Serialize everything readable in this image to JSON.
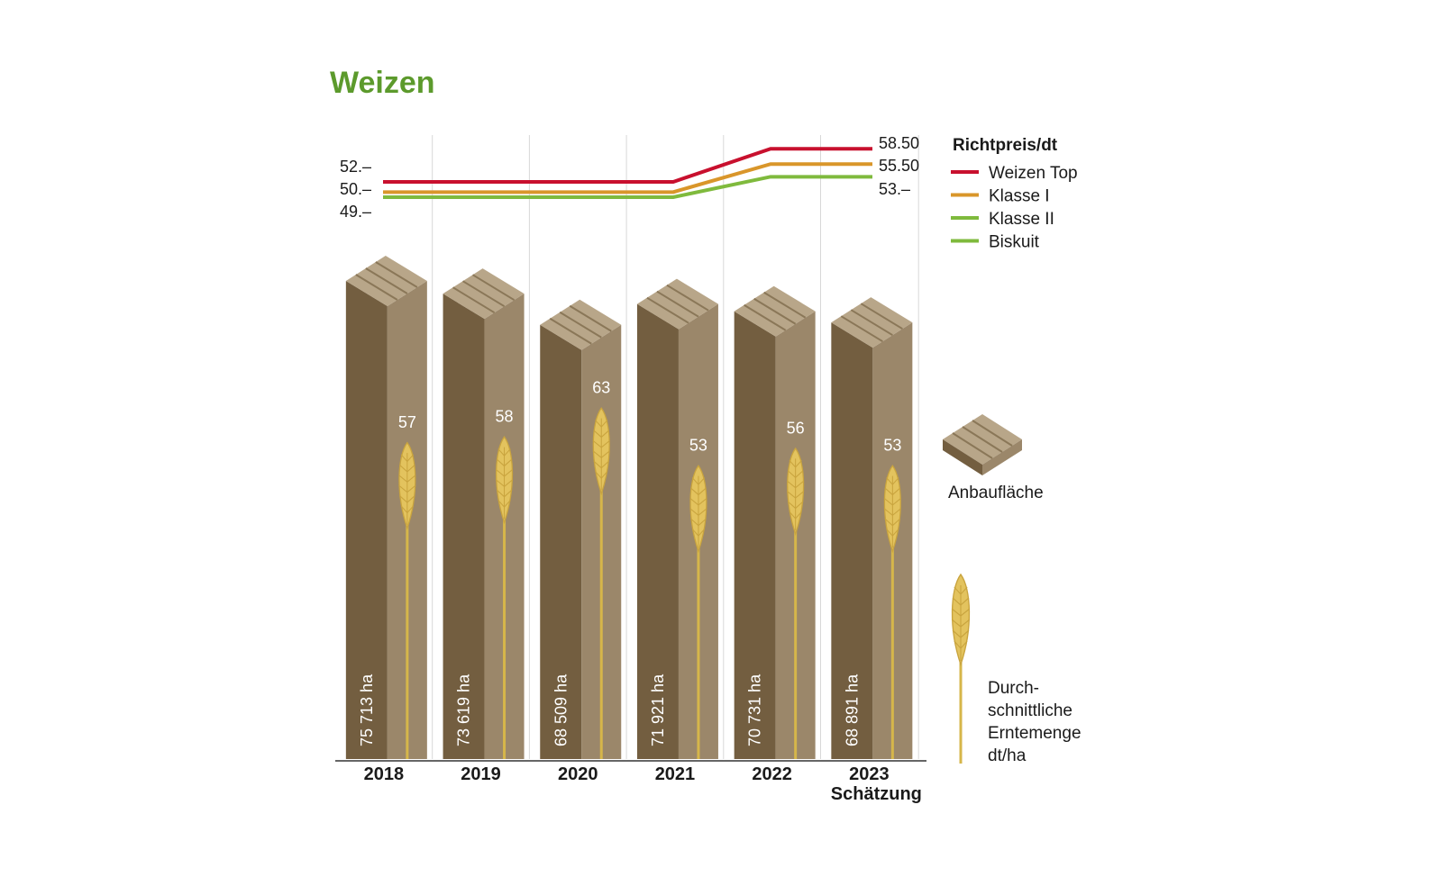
{
  "chart_data": {
    "type": "bar",
    "title": "Weizen",
    "categories": [
      "2018",
      "2019",
      "2020",
      "2021",
      "2022",
      "2023"
    ],
    "category_note": {
      "2023": "Schätzung"
    },
    "anbauflaeche": {
      "unit": "ha",
      "values": [
        75713,
        73619,
        68509,
        71921,
        70731,
        68891
      ],
      "labels": [
        "75 713 ha",
        "73 619 ha",
        "68 509 ha",
        "71 921 ha",
        "70 731 ha",
        "68 891 ha"
      ]
    },
    "ernte": {
      "unit": "dt/ha",
      "values": [
        57,
        58,
        63,
        53,
        56,
        53
      ],
      "labels": [
        "57",
        "58",
        "63",
        "53",
        "56",
        "53"
      ]
    },
    "price": {
      "title": "Richtpreis/dt",
      "x": [
        "2018",
        "2019",
        "2020",
        "2021",
        "2022",
        "2023"
      ],
      "series": [
        {
          "name": "Weizen Top",
          "color": "#c8102e",
          "values": [
            52,
            52,
            52,
            52,
            58.5,
            58.5
          ]
        },
        {
          "name": "Klasse I",
          "color": "#d9962a",
          "values": [
            50,
            50,
            50,
            50,
            55.5,
            55.5
          ]
        },
        {
          "name": "Klasse II",
          "color": "#7fba3d",
          "values": [
            49,
            49,
            49,
            49,
            53,
            53
          ]
        },
        {
          "name": "Biskuit",
          "color": "#7fba3d",
          "values": [
            49,
            49,
            49,
            49,
            53,
            53
          ]
        }
      ],
      "start_labels": [
        "52.–",
        "50.–",
        "49.–"
      ],
      "end_labels": [
        "58.50",
        "55.50",
        "53.–"
      ]
    },
    "symbols": {
      "area": "Anbaufläche",
      "yield": [
        "Durch-",
        "schnittliche",
        "Erntemenge",
        "dt/ha"
      ]
    },
    "colors": {
      "title": "#5c9a2c",
      "bar_front": "#735e40",
      "bar_side": "#9b876a",
      "bar_top": "#b8a689",
      "wheat": "#e3c35e",
      "stalk": "#d6b64a",
      "grid": "#d8d8d8"
    },
    "legend_position": "top-right"
  }
}
